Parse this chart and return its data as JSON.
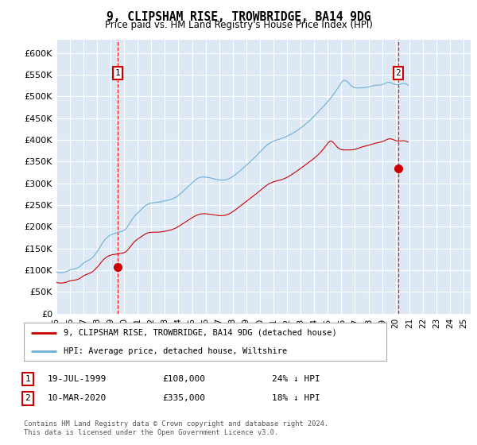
{
  "title": "9, CLIPSHAM RISE, TROWBRIDGE, BA14 9DG",
  "subtitle": "Price paid vs. HM Land Registry's House Price Index (HPI)",
  "hpi_label": "HPI: Average price, detached house, Wiltshire",
  "price_label": "9, CLIPSHAM RISE, TROWBRIDGE, BA14 9DG (detached house)",
  "ylabel_ticks": [
    "£0",
    "£50K",
    "£100K",
    "£150K",
    "£200K",
    "£250K",
    "£300K",
    "£350K",
    "£400K",
    "£450K",
    "£500K",
    "£550K",
    "£600K"
  ],
  "ytick_values": [
    0,
    50000,
    100000,
    150000,
    200000,
    250000,
    300000,
    350000,
    400000,
    450000,
    500000,
    550000,
    600000
  ],
  "ylim": [
    0,
    630000
  ],
  "xlim_start": 1995.0,
  "xlim_end": 2025.5,
  "hpi_color": "#6baed6",
  "price_color": "#cc0000",
  "bg_color": "#dce9f5",
  "sale1_date": "19-JUL-1999",
  "sale1_price": 108000,
  "sale1_label": "24% ↓ HPI",
  "sale1_x": 1999.54,
  "sale2_date": "10-MAR-2020",
  "sale2_price": 335000,
  "sale2_label": "18% ↓ HPI",
  "sale2_x": 2020.19,
  "footer": "Contains HM Land Registry data © Crown copyright and database right 2024.\nThis data is licensed under the Open Government Licence v3.0.",
  "hpi_monthly": [
    95800,
    95200,
    94800,
    94500,
    94300,
    94200,
    94800,
    95400,
    96100,
    97000,
    98200,
    99500,
    100800,
    101200,
    101800,
    102300,
    102900,
    103600,
    104500,
    105800,
    107200,
    109100,
    111400,
    113800,
    116500,
    118200,
    119800,
    121100,
    122300,
    123500,
    125200,
    127100,
    129400,
    132000,
    135100,
    138600,
    142400,
    146200,
    150800,
    155200,
    159600,
    163500,
    167200,
    170500,
    173400,
    175900,
    177900,
    179700,
    181200,
    182400,
    183500,
    184400,
    185200,
    186000,
    186700,
    187400,
    188100,
    188900,
    189700,
    190600,
    192000,
    194200,
    197000,
    200500,
    204400,
    208600,
    212900,
    217100,
    220800,
    224300,
    227200,
    229800,
    232100,
    234500,
    237100,
    239800,
    242500,
    245000,
    247300,
    249200,
    250900,
    252300,
    253400,
    254200,
    254800,
    255200,
    255500,
    255800,
    256100,
    256400,
    256700,
    257100,
    257500,
    258000,
    258600,
    259200,
    259800,
    260400,
    260900,
    261500,
    262100,
    262800,
    263700,
    264700,
    265900,
    267300,
    268900,
    270700,
    272700,
    274800,
    277000,
    279300,
    281700,
    284100,
    286500,
    288900,
    291300,
    293800,
    296200,
    298600,
    301100,
    303500,
    305800,
    308000,
    309900,
    311600,
    312900,
    313800,
    314400,
    314700,
    314800,
    314700,
    314500,
    314200,
    313800,
    313400,
    312900,
    312300,
    311600,
    310900,
    310200,
    309500,
    308900,
    308400,
    308000,
    307700,
    307600,
    307600,
    307800,
    308200,
    308700,
    309400,
    310300,
    311400,
    312700,
    314200,
    315800,
    317600,
    319500,
    321500,
    323600,
    325700,
    327900,
    330100,
    332400,
    334700,
    337000,
    339400,
    341700,
    344100,
    346500,
    348900,
    351300,
    353700,
    356200,
    358700,
    361200,
    363800,
    366500,
    369200,
    372000,
    374800,
    377600,
    380300,
    382900,
    385300,
    387600,
    389700,
    391600,
    393300,
    394800,
    396100,
    397300,
    398400,
    399300,
    400100,
    400900,
    401700,
    402500,
    403400,
    404300,
    405300,
    406400,
    407500,
    408700,
    409900,
    411200,
    412500,
    413900,
    415400,
    417000,
    418600,
    420300,
    422000,
    423800,
    425600,
    427500,
    429400,
    431400,
    433500,
    435600,
    437800,
    440000,
    442300,
    444700,
    447200,
    449700,
    452300,
    455000,
    457700,
    460400,
    463100,
    465800,
    468500,
    471200,
    473900,
    476700,
    479500,
    482400,
    485400,
    488400,
    491500,
    494700,
    498000,
    501400,
    504900,
    508500,
    512200,
    516000,
    519900,
    523900,
    528000,
    532100,
    535300,
    537200,
    537600,
    536600,
    534600,
    532000,
    529200,
    526600,
    524300,
    522500,
    521200,
    520300,
    519800,
    519600,
    519600,
    519700,
    519900,
    520100,
    520300,
    520500,
    520700,
    521000,
    521500,
    522000,
    522600,
    523300,
    524000,
    524700,
    525300,
    525800,
    526100,
    526200,
    526200,
    526300,
    526600,
    527200,
    528200,
    529400,
    530700,
    531800,
    532500,
    532700,
    532300,
    531500,
    530400,
    529200,
    528200,
    527500,
    527200,
    527300,
    527800,
    528600,
    529400,
    530000,
    530100,
    529600,
    528700,
    527400,
    526000
  ],
  "price_monthly": [
    72000,
    71500,
    71100,
    70800,
    70600,
    70500,
    70900,
    71400,
    72000,
    72700,
    73600,
    74600,
    75700,
    76000,
    76400,
    76800,
    77200,
    77700,
    78300,
    79100,
    80200,
    81500,
    83200,
    85100,
    87200,
    88500,
    89700,
    90700,
    91600,
    92500,
    93600,
    95000,
    96700,
    98700,
    101100,
    103800,
    106700,
    109500,
    112900,
    116200,
    119400,
    122400,
    125100,
    127500,
    129600,
    131300,
    132700,
    133800,
    134700,
    135400,
    136000,
    136400,
    136800,
    137200,
    137500,
    137900,
    138300,
    138800,
    139300,
    139900,
    140700,
    142000,
    143900,
    146400,
    149400,
    152700,
    156100,
    159500,
    162700,
    165600,
    168100,
    170200,
    171900,
    173600,
    175400,
    177200,
    179000,
    180800,
    182500,
    184000,
    185300,
    186300,
    186900,
    187300,
    187500,
    187600,
    187600,
    187600,
    187600,
    187700,
    187800,
    188000,
    188200,
    188500,
    188900,
    189300,
    189800,
    190300,
    190800,
    191400,
    192000,
    192700,
    193500,
    194400,
    195400,
    196600,
    197900,
    199300,
    200800,
    202400,
    204100,
    205800,
    207500,
    209200,
    210900,
    212600,
    214300,
    215900,
    217600,
    219200,
    220800,
    222400,
    223900,
    225300,
    226600,
    227700,
    228600,
    229300,
    229800,
    230100,
    230200,
    230200,
    230100,
    229900,
    229600,
    229300,
    228900,
    228500,
    228100,
    227700,
    227200,
    226800,
    226400,
    226100,
    225900,
    225700,
    225700,
    225800,
    226100,
    226600,
    227200,
    228000,
    229000,
    230200,
    231600,
    233200,
    234900,
    236700,
    238600,
    240500,
    242500,
    244500,
    246500,
    248500,
    250500,
    252500,
    254500,
    256500,
    258500,
    260500,
    262500,
    264500,
    266500,
    268500,
    270500,
    272600,
    274600,
    276700,
    278800,
    281000,
    283200,
    285400,
    287600,
    289700,
    291800,
    293800,
    295700,
    297400,
    299000,
    300400,
    301600,
    302700,
    303600,
    304400,
    305100,
    305700,
    306300,
    307000,
    307700,
    308500,
    309400,
    310400,
    311500,
    312700,
    314000,
    315400,
    316900,
    318500,
    320100,
    321800,
    323500,
    325300,
    327100,
    328900,
    330800,
    332700,
    334600,
    336500,
    338400,
    340300,
    342200,
    344100,
    346000,
    347900,
    349800,
    351800,
    353800,
    355900,
    358000,
    360200,
    362500,
    364900,
    367400,
    370000,
    372800,
    375700,
    378800,
    382000,
    385400,
    388900,
    392600,
    395200,
    397200,
    397500,
    396200,
    393800,
    390800,
    387600,
    384700,
    382200,
    380200,
    378800,
    377900,
    377300,
    377000,
    377000,
    377000,
    377100,
    377100,
    377200,
    377200,
    377300,
    377500,
    378000,
    378600,
    379300,
    380100,
    381000,
    381900,
    382800,
    383700,
    384500,
    385200,
    385800,
    386300,
    387000,
    387700,
    388500,
    389300,
    390200,
    391000,
    391800,
    392500,
    393200,
    393700,
    394200,
    394700,
    395300,
    396000,
    397000,
    398200,
    399500,
    400800,
    401900,
    402600,
    402800,
    402500,
    401700,
    400600,
    399500,
    398600,
    397900,
    397500,
    397400,
    397600,
    397900,
    398300,
    398400,
    398000,
    397300,
    396200,
    395100
  ],
  "start_year": 1995,
  "start_month": 1,
  "n_months": 372
}
